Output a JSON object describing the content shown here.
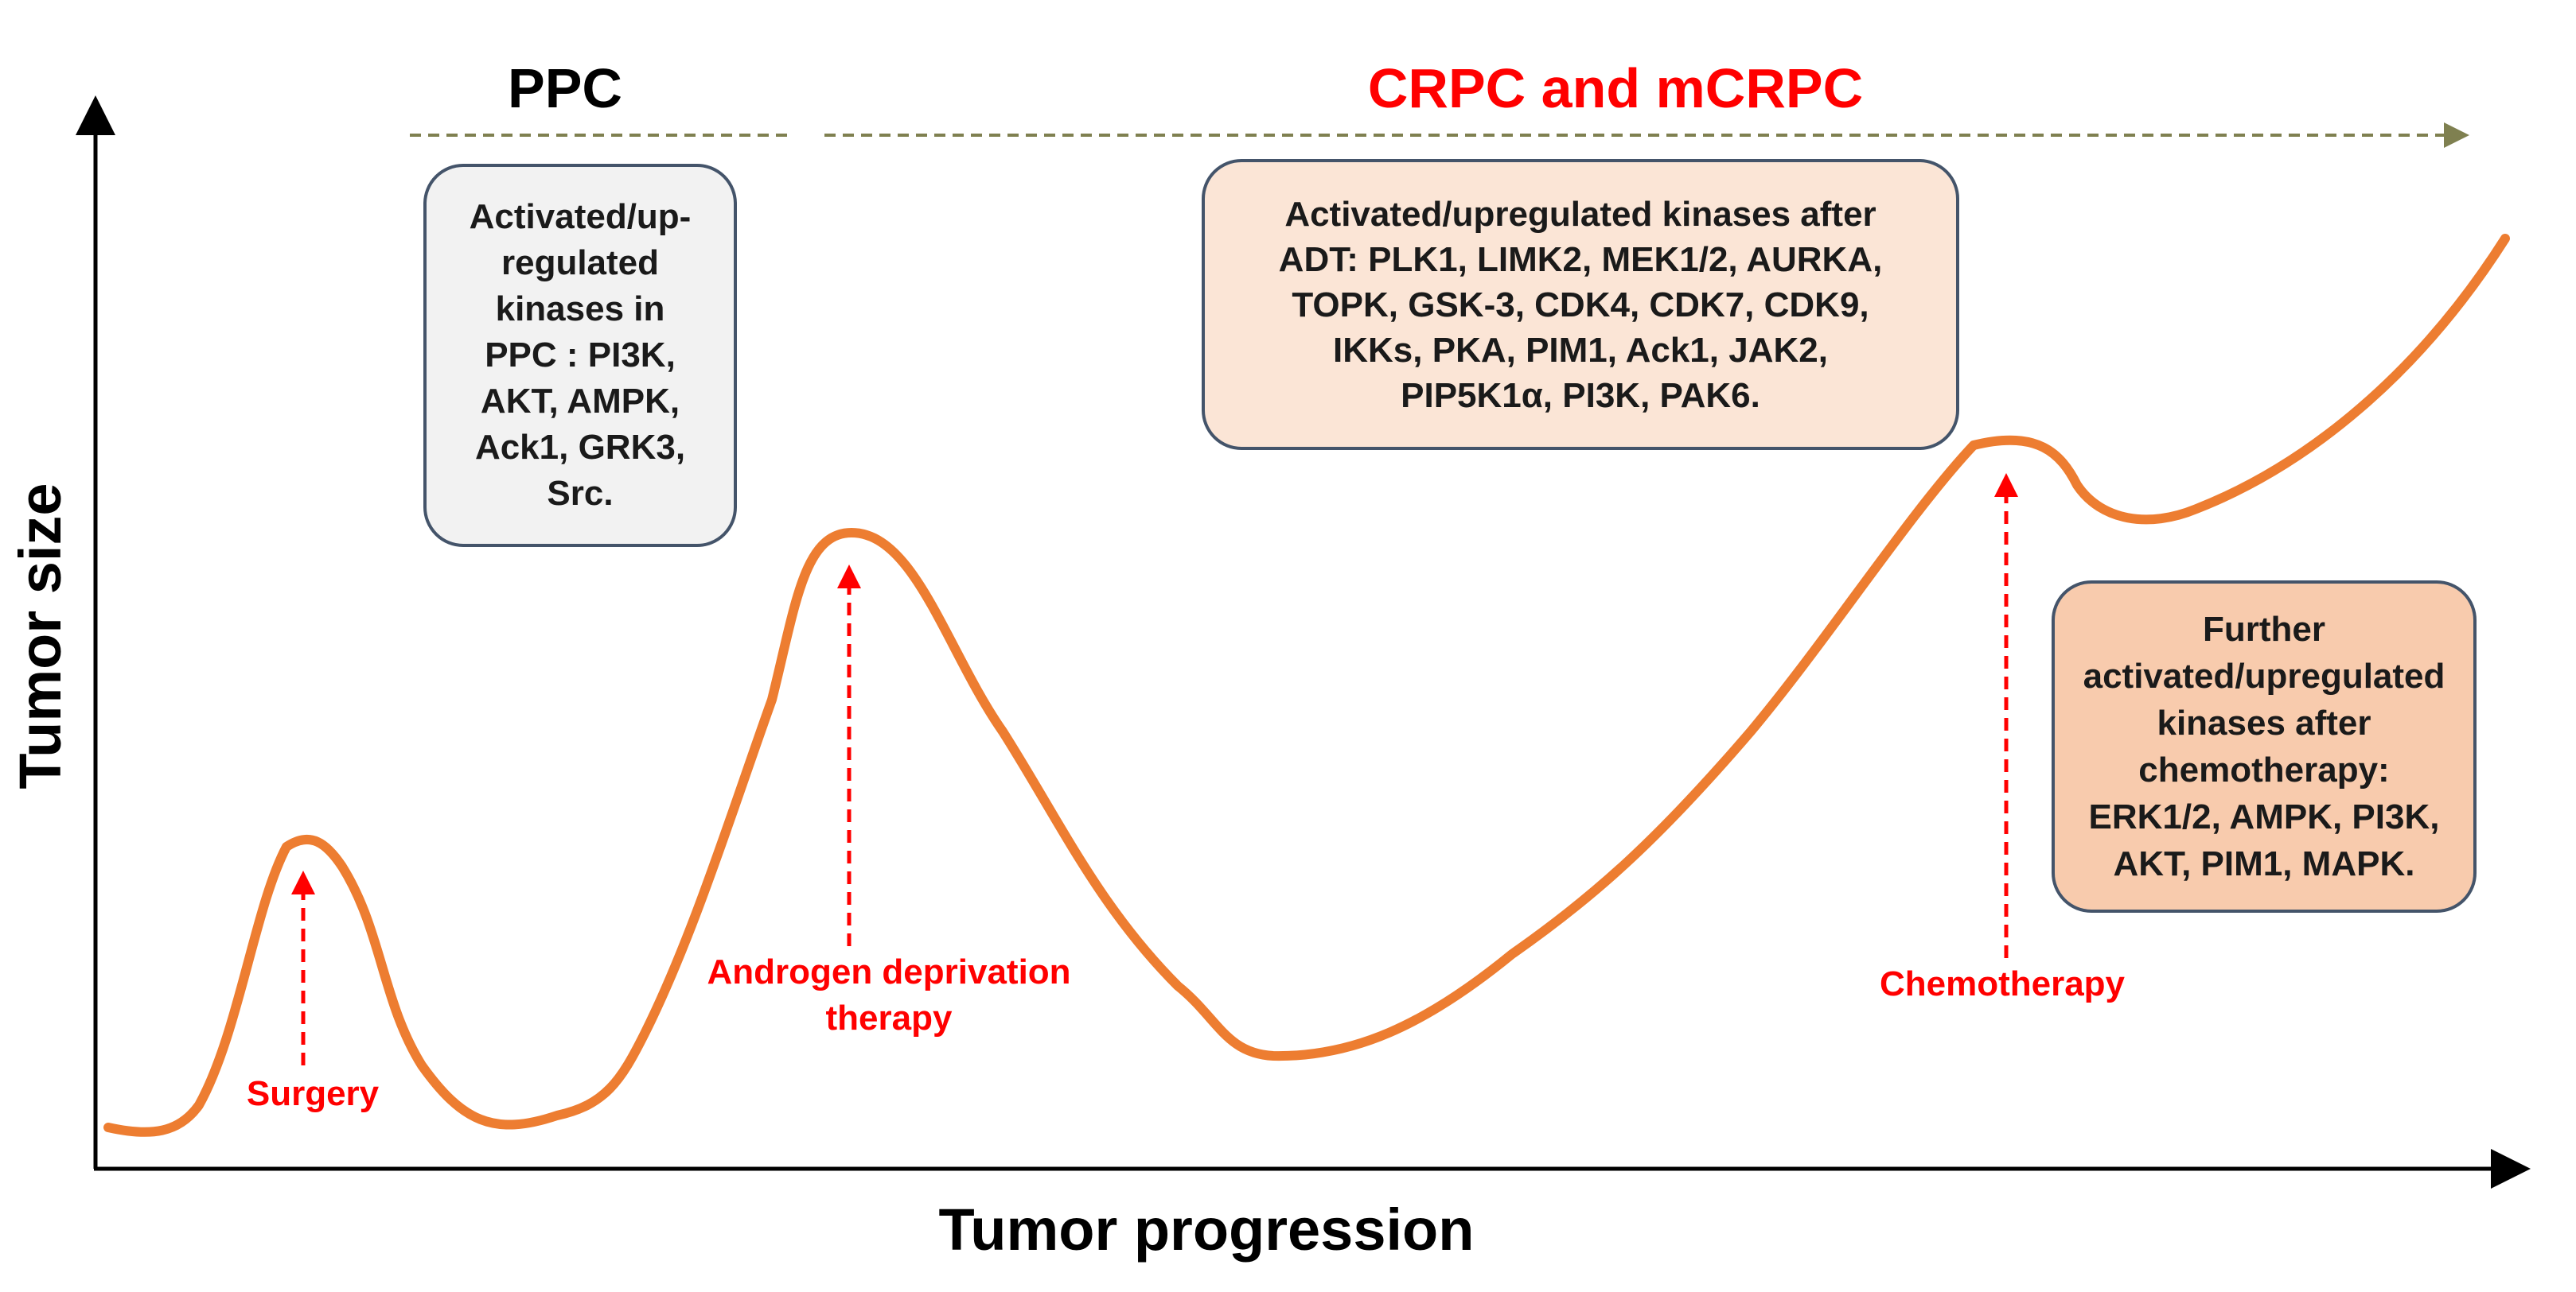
{
  "colors": {
    "curve": "#ed7d31",
    "event_red": "#ff0000",
    "phase_line": "#7f8050",
    "box_border": "#44546a",
    "ppc_box_bg": "#f2f2f2",
    "adt_box_bg": "#fbe5d6",
    "chemo_box_bg": "#f8cbad"
  },
  "axes": {
    "x_title": "Tumor progression",
    "y_title": "Tumor size"
  },
  "phases": {
    "ppc": "PPC",
    "crpc": "CRPC and mCRPC"
  },
  "events": {
    "surgery": "Surgery",
    "adt_line1": "Androgen deprivation",
    "adt_line2": "therapy",
    "chemo": "Chemotherapy"
  },
  "boxes": {
    "ppc": [
      "Activated/up-",
      "regulated",
      "kinases in",
      "PPC : PI3K,",
      "AKT, AMPK,",
      "Ack1, GRK3,",
      "Src."
    ],
    "adt": [
      "Activated/upregulated kinases after",
      "ADT: PLK1, LIMK2, MEK1/2, AURKA,",
      "TOPK, GSK-3, CDK4, CDK7, CDK9,",
      "IKKs, PKA, PIM1, Ack1, JAK2,",
      "PIP5K1α, PI3K, PAK6."
    ],
    "chemo": [
      "Further",
      "activated/upregulated",
      "kinases after",
      "chemotherapy:",
      "ERK1/2, AMPK, PI3K,",
      "AKT, PIM1, MAPK."
    ]
  }
}
